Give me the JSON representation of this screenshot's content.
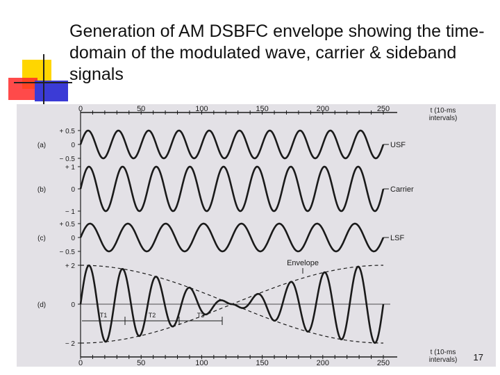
{
  "title": "Generation of AM DSBFC envelope showing the time-domain of the modulated wave, carrier & sideband signals",
  "slide_number": "17",
  "figure": {
    "top_axis_ticks": [
      "0",
      "50",
      "100",
      "150",
      "200",
      "250"
    ],
    "bottom_axis_ticks": [
      "0",
      "50",
      "100",
      "150",
      "200",
      "250"
    ],
    "axis_label_line1": "t (10-ms",
    "axis_label_line2": "intervals)",
    "panels": [
      {
        "id": "a",
        "label": "(a)",
        "name": "USF",
        "ticks": [
          "+ 0.5",
          "0",
          "− 0.5"
        ]
      },
      {
        "id": "b",
        "label": "(b)",
        "name": "Carrier",
        "ticks": [
          "+ 1",
          "0",
          "− 1"
        ]
      },
      {
        "id": "c",
        "label": "(c)",
        "name": "LSF",
        "ticks": [
          "+ 0.5",
          "0",
          "− 0.5"
        ]
      },
      {
        "id": "d",
        "label": "(d)",
        "name": "Envelope",
        "ticks": [
          "+ 2",
          "0",
          "− 2"
        ]
      }
    ],
    "intervals": [
      "T1",
      "T2",
      "T3"
    ]
  },
  "colors": {
    "background_scan": "#e3e1e6",
    "trace": "#1a1a1a",
    "accent_yellow": "#ffd600",
    "accent_red": "#ff2a2a",
    "accent_blue": "#3b3bd6"
  }
}
